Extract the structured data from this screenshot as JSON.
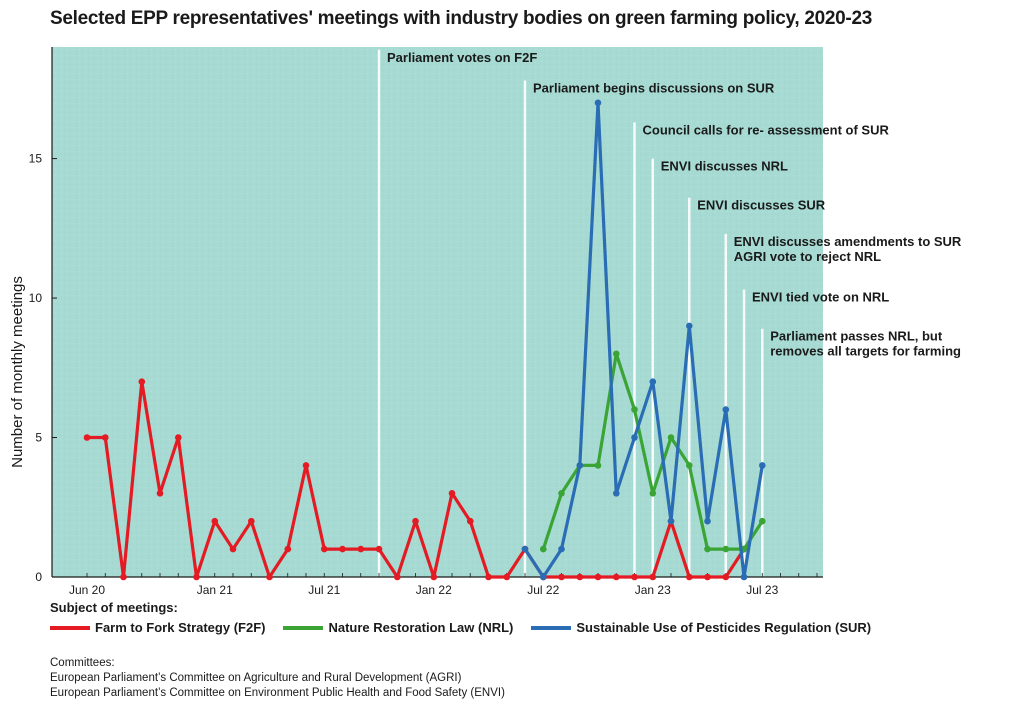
{
  "chart_data": {
    "type": "line",
    "title": "Selected EPP representatives' meetings with industry bodies on green farming policy, 2020-23",
    "ylabel": "Number of monthly meetings",
    "xlabel": "",
    "ylim": [
      0,
      19
    ],
    "yticks": [
      0,
      5,
      10,
      15
    ],
    "x_tick_labels": [
      {
        "month": "2020-06",
        "label": "Jun 20"
      },
      {
        "month": "2021-01",
        "label": "Jan 21"
      },
      {
        "month": "2021-07",
        "label": "Jul 21"
      },
      {
        "month": "2022-01",
        "label": "Jan 22"
      },
      {
        "month": "2022-07",
        "label": "Jul 22"
      },
      {
        "month": "2023-01",
        "label": "Jan 23"
      },
      {
        "month": "2023-07",
        "label": "Jul 23"
      }
    ],
    "grid": false,
    "legend_placement": "bottom",
    "series": [
      {
        "name": "Farm to Fork Strategy (F2F)",
        "color": "#e41b23",
        "points": [
          [
            "2020-06",
            5
          ],
          [
            "2020-07",
            5
          ],
          [
            "2020-08",
            0
          ],
          [
            "2020-09",
            7
          ],
          [
            "2020-10",
            3
          ],
          [
            "2020-11",
            5
          ],
          [
            "2020-12",
            0
          ],
          [
            "2021-01",
            2
          ],
          [
            "2021-02",
            1
          ],
          [
            "2021-03",
            2
          ],
          [
            "2021-04",
            0
          ],
          [
            "2021-05",
            1
          ],
          [
            "2021-06",
            4
          ],
          [
            "2021-07",
            1
          ],
          [
            "2021-08",
            1
          ],
          [
            "2021-09",
            1
          ],
          [
            "2021-10",
            1
          ],
          [
            "2021-11",
            0
          ],
          [
            "2021-12",
            2
          ],
          [
            "2022-01",
            0
          ],
          [
            "2022-02",
            3
          ],
          [
            "2022-03",
            2
          ],
          [
            "2022-04",
            0
          ],
          [
            "2022-05",
            0
          ],
          [
            "2022-06",
            1
          ],
          [
            "2022-07",
            0
          ],
          [
            "2022-08",
            0
          ],
          [
            "2022-09",
            0
          ],
          [
            "2022-10",
            0
          ],
          [
            "2022-11",
            0
          ],
          [
            "2022-12",
            0
          ],
          [
            "2023-01",
            0
          ],
          [
            "2023-02",
            2
          ],
          [
            "2023-03",
            0
          ],
          [
            "2023-04",
            0
          ],
          [
            "2023-05",
            0
          ],
          [
            "2023-06",
            1
          ]
        ]
      },
      {
        "name": "Nature Restoration Law (NRL)",
        "color": "#3aa535",
        "points": [
          [
            "2022-07",
            1
          ],
          [
            "2022-08",
            3
          ],
          [
            "2022-09",
            4
          ],
          [
            "2022-10",
            4
          ],
          [
            "2022-11",
            8
          ],
          [
            "2022-12",
            6
          ],
          [
            "2023-01",
            3
          ],
          [
            "2023-02",
            5
          ],
          [
            "2023-03",
            4
          ],
          [
            "2023-04",
            1
          ],
          [
            "2023-05",
            1
          ],
          [
            "2023-06",
            1
          ],
          [
            "2023-07",
            2
          ]
        ]
      },
      {
        "name": "Sustainable Use of Pesticides Regulation (SUR)",
        "color": "#2a6db5",
        "points": [
          [
            "2022-06",
            1
          ],
          [
            "2022-07",
            0
          ],
          [
            "2022-08",
            1
          ],
          [
            "2022-09",
            4
          ],
          [
            "2022-10",
            17
          ],
          [
            "2022-11",
            3
          ],
          [
            "2022-12",
            5
          ],
          [
            "2023-01",
            7
          ],
          [
            "2023-02",
            2
          ],
          [
            "2023-03",
            9
          ],
          [
            "2023-04",
            2
          ],
          [
            "2023-05",
            6
          ],
          [
            "2023-06",
            0
          ],
          [
            "2023-07",
            4
          ]
        ]
      }
    ],
    "annotations": [
      {
        "month": "2021-10",
        "line_top": 18.9,
        "label_lines": [
          "Parliament votes on F2F"
        ]
      },
      {
        "month": "2022-06",
        "line_top": 17.8,
        "label_lines": [
          "Parliament begins discussions on SUR"
        ]
      },
      {
        "month": "2022-12",
        "line_top": 16.3,
        "label_lines": [
          "Council calls for re- assessment of SUR"
        ]
      },
      {
        "month": "2023-01",
        "line_top": 15.0,
        "label_lines": [
          "ENVI discusses NRL"
        ]
      },
      {
        "month": "2023-03",
        "line_top": 13.6,
        "label_lines": [
          "ENVI discusses SUR"
        ]
      },
      {
        "month": "2023-05",
        "line_top": 12.3,
        "label_lines": [
          "ENVI discusses amendments to SUR",
          "AGRI vote to reject NRL"
        ]
      },
      {
        "month": "2023-06",
        "line_top": 10.3,
        "label_lines": [
          "ENVI tied vote on NRL"
        ]
      },
      {
        "month": "2023-07",
        "line_top": 8.9,
        "label_lines": [
          "Parliament passes NRL, but",
          "removes all targets for farming"
        ]
      }
    ],
    "background_color": "#a6dad2"
  },
  "legend": {
    "title": "Subject of meetings:"
  },
  "notes": {
    "heading": "Committees:",
    "lines": [
      "European Parliament’s Committee on Agriculture and Rural Development (AGRI)",
      "European Parliament’s Committee on Environment Public Health and Food Safety (ENVI)"
    ]
  }
}
